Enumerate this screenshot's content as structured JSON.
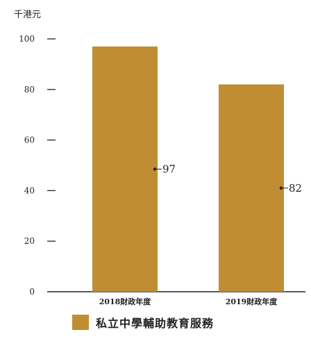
{
  "unit_label": "千港元",
  "colors": {
    "bar": "#c08d32",
    "axis": "#222222"
  },
  "chart_data": {
    "type": "bar",
    "title": "",
    "xlabel": "",
    "ylabel": "千港元",
    "categories": [
      "2018財政年度",
      "2019財政年度"
    ],
    "series": [
      {
        "name": "私立中學輔助教育服務",
        "values": [
          97,
          82
        ]
      }
    ],
    "data_labels": [
      "97",
      "82"
    ],
    "ylim": [
      0,
      100
    ],
    "yticks": [
      0,
      20,
      40,
      60,
      80,
      100
    ],
    "ytick_labels": [
      "0",
      "20",
      "40",
      "60",
      "80",
      "100"
    ],
    "grid": false,
    "legend": "bottom"
  }
}
